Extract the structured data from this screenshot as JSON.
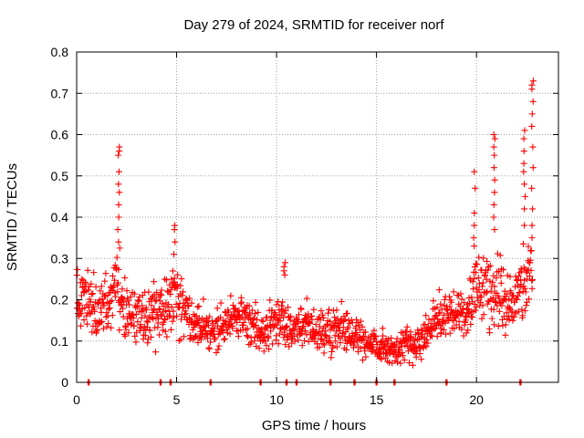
{
  "chart_data": {
    "type": "scatter",
    "title": "Day 279 of 2024, SRMTID for receiver norf",
    "xlabel": "GPS time / hours",
    "ylabel": "SRMTID / TECUs",
    "xlim": [
      0,
      24.1
    ],
    "ylim": [
      0,
      0.8
    ],
    "x_ticks": [
      {
        "value": 0,
        "label": "0"
      },
      {
        "value": 5,
        "label": "5"
      },
      {
        "value": 10,
        "label": "10"
      },
      {
        "value": 15,
        "label": "15"
      },
      {
        "value": 20,
        "label": "20"
      }
    ],
    "y_ticks": [
      {
        "value": 0,
        "label": "0"
      },
      {
        "value": 0.1,
        "label": "0.1"
      },
      {
        "value": 0.2,
        "label": "0.2"
      },
      {
        "value": 0.3,
        "label": "0.3"
      },
      {
        "value": 0.4,
        "label": "0.4"
      },
      {
        "value": 0.5,
        "label": "0.5"
      },
      {
        "value": 0.6,
        "label": "0.6"
      },
      {
        "value": 0.7,
        "label": "0.7"
      },
      {
        "value": 0.8,
        "label": "0.8"
      }
    ],
    "grid": true,
    "marker": "+",
    "series_color": "#ff0000",
    "trend": [
      [
        0.0,
        0.19
      ],
      [
        0.5,
        0.2
      ],
      [
        1.0,
        0.17
      ],
      [
        1.5,
        0.19
      ],
      [
        2.0,
        0.24
      ],
      [
        2.5,
        0.17
      ],
      [
        3.0,
        0.16
      ],
      [
        3.5,
        0.15
      ],
      [
        4.0,
        0.17
      ],
      [
        4.5,
        0.18
      ],
      [
        5.0,
        0.22
      ],
      [
        5.5,
        0.16
      ],
      [
        6.0,
        0.14
      ],
      [
        6.5,
        0.12
      ],
      [
        7.0,
        0.13
      ],
      [
        7.5,
        0.14
      ],
      [
        8.0,
        0.15
      ],
      [
        8.5,
        0.15
      ],
      [
        9.0,
        0.13
      ],
      [
        9.5,
        0.13
      ],
      [
        10.0,
        0.15
      ],
      [
        10.5,
        0.14
      ],
      [
        11.0,
        0.13
      ],
      [
        11.5,
        0.14
      ],
      [
        12.0,
        0.12
      ],
      [
        12.5,
        0.13
      ],
      [
        13.0,
        0.12
      ],
      [
        13.5,
        0.12
      ],
      [
        14.0,
        0.11
      ],
      [
        14.5,
        0.1
      ],
      [
        15.0,
        0.09
      ],
      [
        15.5,
        0.08
      ],
      [
        16.0,
        0.08
      ],
      [
        16.5,
        0.09
      ],
      [
        17.0,
        0.09
      ],
      [
        17.5,
        0.12
      ],
      [
        18.0,
        0.15
      ],
      [
        18.5,
        0.17
      ],
      [
        19.0,
        0.17
      ],
      [
        19.5,
        0.18
      ],
      [
        20.0,
        0.22
      ],
      [
        20.5,
        0.23
      ],
      [
        21.0,
        0.21
      ],
      [
        21.5,
        0.2
      ],
      [
        22.0,
        0.21
      ],
      [
        22.5,
        0.24
      ],
      [
        22.8,
        0.28
      ]
    ],
    "spikes": [
      {
        "x": 2.1,
        "values": [
          0.57,
          0.56,
          0.55,
          0.51,
          0.48,
          0.46,
          0.43,
          0.4,
          0.37,
          0.34
        ]
      },
      {
        "x": 4.9,
        "values": [
          0.38,
          0.37,
          0.34,
          0.31
        ]
      },
      {
        "x": 10.4,
        "values": [
          0.29,
          0.28,
          0.27,
          0.26
        ]
      },
      {
        "x": 19.9,
        "values": [
          0.51,
          0.47,
          0.41,
          0.38,
          0.35,
          0.33
        ]
      },
      {
        "x": 20.9,
        "values": [
          0.6,
          0.59,
          0.57,
          0.55,
          0.52,
          0.49,
          0.46,
          0.43,
          0.4,
          0.37
        ]
      },
      {
        "x": 22.4,
        "values": [
          0.61,
          0.59,
          0.56,
          0.53,
          0.51,
          0.48,
          0.45,
          0.42,
          0.38
        ]
      },
      {
        "x": 22.8,
        "values": [
          0.73,
          0.72,
          0.71,
          0.68,
          0.65,
          0.62,
          0.57,
          0.52,
          0.47,
          0.42,
          0.38,
          0.35
        ]
      }
    ],
    "zero_points": [
      0.6,
      4.2,
      4.7,
      6.7,
      9.2,
      10.5,
      11.0,
      12.7,
      13.9,
      15.0,
      15.9,
      18.5,
      22.2
    ]
  }
}
